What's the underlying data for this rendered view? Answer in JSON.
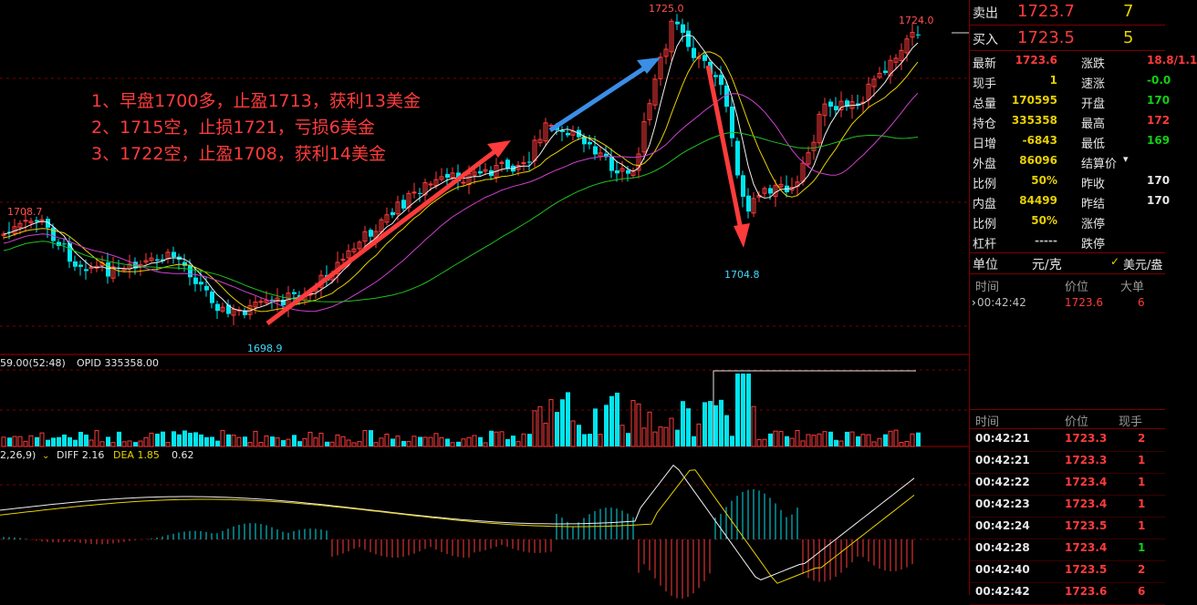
{
  "annotations": {
    "trade1": "1、早盘1700多，止盈1713，获利13美金",
    "trade2": "2、1715空，止损1721，亏损6美金",
    "trade3": "3、1722空，止盈1708，获利14美金"
  },
  "price_labels": {
    "high": "1725.0",
    "right_high": "1724.0",
    "left_high": "1708.7",
    "low": "1698.9",
    "mid_low": "1704.8"
  },
  "volume_header": {
    "prefix": "59.00(52:48)",
    "opid": "OPID 335358.00"
  },
  "macd_header": {
    "params": "2,26,9)",
    "diff": "DIFF 2.16",
    "dea": "DEA 1.85",
    "macd": "0.62"
  },
  "quote": {
    "sell": {
      "label": "卖出",
      "price": "1723.7",
      "qty": "7"
    },
    "buy": {
      "label": "买入",
      "price": "1723.5",
      "qty": "5"
    },
    "stats": [
      {
        "k1": "最新",
        "v1": "1723.6",
        "c1": "red",
        "k2": "涨跌",
        "v2": "18.8/1.1",
        "c2": "red"
      },
      {
        "k1": "现手",
        "v1": "1",
        "c1": "yellow",
        "k2": "速涨",
        "v2": "-0.0",
        "c2": "green"
      },
      {
        "k1": "总量",
        "v1": "170595",
        "c1": "yellow",
        "k2": "开盘",
        "v2": "170",
        "c2": "green"
      },
      {
        "k1": "持仓",
        "v1": "335358",
        "c1": "yellow",
        "k2": "最高",
        "v2": "172",
        "c2": "red"
      },
      {
        "k1": "日增",
        "v1": "-6843",
        "c1": "yellow",
        "k2": "最低",
        "v2": "169",
        "c2": "green"
      },
      {
        "k1": "外盘",
        "v1": "86096",
        "c1": "yellow",
        "k2": "结算价",
        "v2": "",
        "c2": "white"
      },
      {
        "k1": "比例",
        "v1": "50%",
        "c1": "yellow",
        "k2": "昨收",
        "v2": "170",
        "c2": "white"
      },
      {
        "k1": "内盘",
        "v1": "84499",
        "c1": "yellow",
        "k2": "昨结",
        "v2": "170",
        "c2": "white"
      },
      {
        "k1": "比例",
        "v1": "50%",
        "c1": "yellow",
        "k2": "涨停",
        "v2": "",
        "c2": "white"
      },
      {
        "k1": "杠杆",
        "v1": "-----",
        "c1": "gray",
        "k2": "跌停",
        "v2": "",
        "c2": "white"
      }
    ],
    "unit": {
      "label": "单位",
      "value": "元/克",
      "option": "美元/盎"
    },
    "big_trades": {
      "headers": [
        "时间",
        "价位",
        "大单"
      ],
      "rows": [
        {
          "time": "00:42:42",
          "price": "1723.6",
          "qty": "6"
        }
      ]
    },
    "ticks": {
      "headers": [
        "时间",
        "价位",
        "现手"
      ],
      "rows": [
        {
          "time": "00:42:21",
          "price": "1723.3",
          "qty": "2",
          "qc": "red"
        },
        {
          "time": "00:42:21",
          "price": "1723.3",
          "qty": "1",
          "qc": "red"
        },
        {
          "time": "00:42:22",
          "price": "1723.4",
          "qty": "1",
          "qc": "red"
        },
        {
          "time": "00:42:23",
          "price": "1723.4",
          "qty": "1",
          "qc": "red"
        },
        {
          "time": "00:42:24",
          "price": "1723.5",
          "qty": "1",
          "qc": "red"
        },
        {
          "time": "00:42:28",
          "price": "1723.4",
          "qty": "1",
          "qc": "green"
        },
        {
          "time": "00:42:40",
          "price": "1723.5",
          "qty": "2",
          "qc": "red"
        },
        {
          "time": "00:42:42",
          "price": "1723.6",
          "qty": "6",
          "qc": "red"
        }
      ]
    }
  },
  "colors": {
    "up": "#ff3b3b",
    "down": "#00e5ee",
    "annotation": "#ff3b3b",
    "arrow_red": "#ff3b3b",
    "arrow_blue": "#3a8ee6"
  }
}
